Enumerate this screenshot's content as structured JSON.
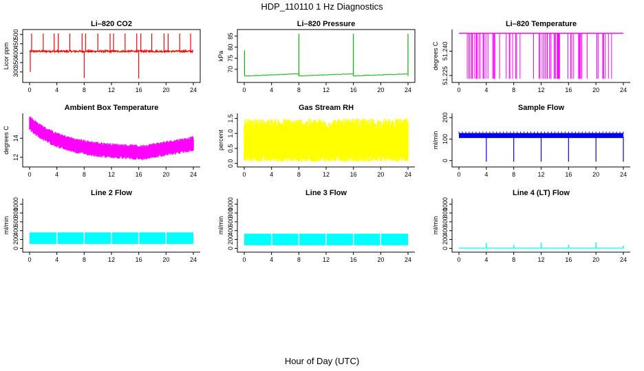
{
  "page_title": "HDP_110110  1 Hz Diagnostics",
  "x_axis_label": "Hour of Day (UTC)",
  "chart_data": [
    {
      "type": "line",
      "title": "Li–820 CO2",
      "ylabel": "Licor ppm",
      "xlim": [
        0,
        24
      ],
      "ylim": [
        255,
        515
      ],
      "x_ticks": [
        "0",
        "4",
        "8",
        "12",
        "16",
        "20",
        "24"
      ],
      "y_ticks": [
        "300",
        "350",
        "400",
        "450",
        "500"
      ],
      "color": "#ff0000",
      "pattern": "co2_baseline_spikes",
      "baseline": 410,
      "box": true
    },
    {
      "type": "line",
      "title": "Li–820 Pressure",
      "ylabel": "kPa",
      "xlim": [
        0,
        24
      ],
      "ylim": [
        65,
        87
      ],
      "x_ticks": [
        "0",
        "4",
        "8",
        "12",
        "16",
        "20",
        "24"
      ],
      "y_ticks": [
        "70",
        "75",
        "80",
        "85"
      ],
      "color": "#00bb00",
      "pattern": "pressure_ramp",
      "baseline": 67,
      "box": true
    },
    {
      "type": "line",
      "title": "Li–820 Temperature",
      "ylabel": "degrees C",
      "xlim": [
        0,
        24
      ],
      "ylim": [
        51.222,
        51.252
      ],
      "x_ticks": [
        "0",
        "4",
        "8",
        "12",
        "16",
        "20",
        "24"
      ],
      "y_ticks": [
        "51.225",
        "51.240"
      ],
      "color": "#ff00ff",
      "pattern": "temp_bars",
      "baseline": 51.251,
      "box": false
    },
    {
      "type": "line",
      "title": "Ambient Box Temperature",
      "ylabel": "degrees C",
      "xlim": [
        0,
        24
      ],
      "ylim": [
        11.2,
        16.4
      ],
      "x_ticks": [
        "0",
        "4",
        "8",
        "12",
        "16",
        "20",
        "24"
      ],
      "y_ticks": [
        "12",
        "14"
      ],
      "color": "#ff00ff",
      "pattern": "ambient_band",
      "baseline": 12.8,
      "box": false
    },
    {
      "type": "line",
      "title": "Gas Stream RH",
      "ylabel": "percent",
      "xlim": [
        0,
        24
      ],
      "ylim": [
        -0.05,
        1.6
      ],
      "x_ticks": [
        "0",
        "4",
        "8",
        "12",
        "16",
        "20",
        "24"
      ],
      "y_ticks": [
        "0.0",
        "0.5",
        "1.0",
        "1.5"
      ],
      "color": "#ffff00",
      "pattern": "rh_band",
      "baseline": 0.65,
      "box": false
    },
    {
      "type": "line",
      "title": "Sample Flow",
      "ylabel": "ml/min",
      "xlim": [
        0,
        24
      ],
      "ylim": [
        -20,
        210
      ],
      "x_ticks": [
        "0",
        "4",
        "8",
        "12",
        "16",
        "20",
        "24"
      ],
      "y_ticks": [
        "0",
        "100",
        "200"
      ],
      "color": "#0000ee",
      "pattern": "sample_flow",
      "baseline": 115,
      "box": false
    },
    {
      "type": "line",
      "title": "Line 2 Flow",
      "ylabel": "ml/min",
      "xlim": [
        0,
        24
      ],
      "ylim": [
        -40,
        1080
      ],
      "x_ticks": [
        "0",
        "4",
        "8",
        "12",
        "16",
        "20",
        "24"
      ],
      "y_ticks": [
        "0",
        "200",
        "400",
        "600",
        "800",
        "1000"
      ],
      "color": "#00ffff",
      "pattern": "flow_band",
      "baseline": 230,
      "box": false
    },
    {
      "type": "line",
      "title": "Line 3 Flow",
      "ylabel": "ml/min",
      "xlim": [
        0,
        24
      ],
      "ylim": [
        -40,
        1080
      ],
      "x_ticks": [
        "0",
        "4",
        "8",
        "12",
        "16",
        "20",
        "24"
      ],
      "y_ticks": [
        "0",
        "200",
        "400",
        "600",
        "800",
        "1000"
      ],
      "color": "#00ffff",
      "pattern": "flow_band",
      "baseline": 200,
      "box": false
    },
    {
      "type": "line",
      "title": "Line 4 (LT) Flow",
      "ylabel": "ml/min",
      "xlim": [
        0,
        24
      ],
      "ylim": [
        -40,
        1080
      ],
      "x_ticks": [
        "0",
        "4",
        "8",
        "12",
        "16",
        "20",
        "24"
      ],
      "y_ticks": [
        "0",
        "200",
        "400",
        "600",
        "800",
        "1000"
      ],
      "color": "#00ffff",
      "pattern": "line4",
      "baseline": 5,
      "box": false
    }
  ]
}
